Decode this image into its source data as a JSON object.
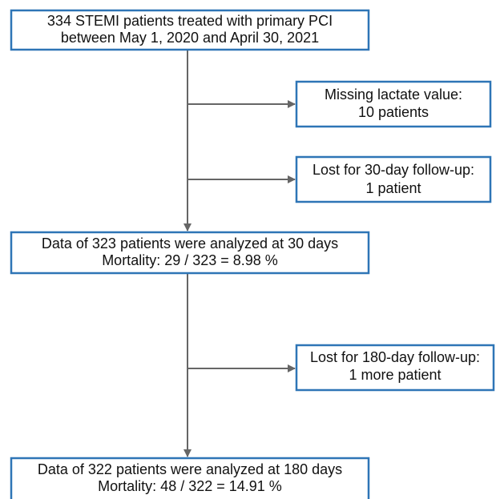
{
  "nodes": [
    {
      "lines": [
        "334 STEMI patients treated with primary PCI",
        "between May 1, 2020 and April 30, 2021"
      ]
    },
    {
      "lines": [
        "Missing lactate value:",
        "10 patients"
      ]
    },
    {
      "lines": [
        "Lost for 30-day follow-up:",
        "1 patient"
      ]
    },
    {
      "lines": [
        "Data of 323 patients were analyzed at 30 days",
        "Mortality: 29 / 323 = 8.98 %"
      ]
    },
    {
      "lines": [
        "Lost for 180-day follow-up:",
        "1 more patient"
      ]
    },
    {
      "lines": [
        "Data of 322 patients were analyzed at 180 days",
        "Mortality: 48 / 322 = 14.91 %"
      ]
    }
  ]
}
